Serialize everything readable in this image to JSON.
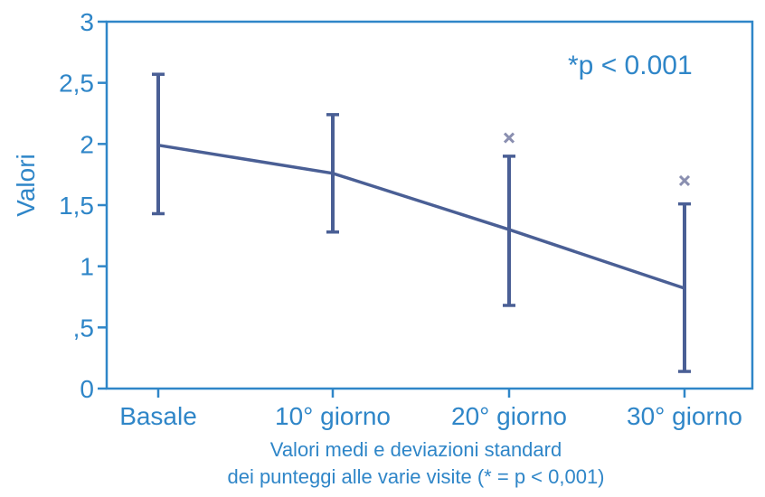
{
  "chart_data": {
    "type": "line",
    "categories": [
      "Basale",
      "10° giorno",
      "20° giorno",
      "30° giorno"
    ],
    "series": [
      {
        "values": [
          1.99,
          1.76,
          1.3,
          0.82
        ],
        "error_low": [
          1.43,
          1.28,
          0.68,
          0.14
        ],
        "error_high": [
          2.57,
          2.24,
          1.9,
          1.51
        ]
      }
    ],
    "significance_markers": [
      {
        "category_index": 2,
        "y": 2.05,
        "symbol": "×"
      },
      {
        "category_index": 3,
        "y": 1.7,
        "symbol": "×"
      }
    ],
    "ylabel": "Valori",
    "xlabel_lines": [
      "Valori medi e deviazioni standard",
      "dei punteggi alle varie visite (* = p < 0,001)"
    ],
    "ylim": [
      0,
      3
    ],
    "ytick_values": [
      0,
      0.5,
      1,
      1.5,
      2,
      2.5,
      3
    ],
    "ytick_labels": [
      "0",
      ",5",
      "1",
      "1,5",
      "2",
      "2,5",
      "3"
    ],
    "annotation": "*p < 0.001",
    "grid": false,
    "colors": {
      "text": "#2f86c8",
      "frame": "#2f86c8",
      "series": "#4a5f95",
      "marker": "#8a8fb0"
    }
  }
}
